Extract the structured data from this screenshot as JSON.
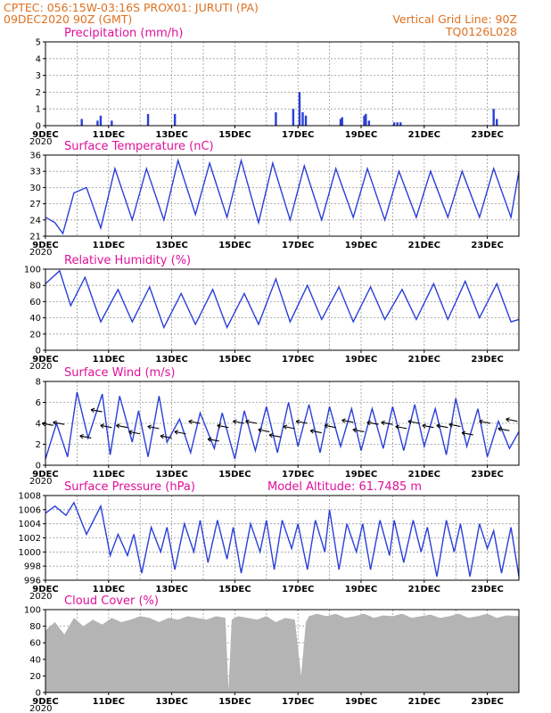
{
  "header": {
    "line1_left": "CPTEC:   056:15W-03:16S   PROX01: JURUTI (PA)",
    "line1_right": "Vertical Grid Line: 90Z",
    "line2_left": "09DEC2020 90Z (GMT)",
    "line2_right": "TQ0126L028"
  },
  "colors": {
    "header": "#e07020",
    "title": "#e0109a",
    "series": "#2a3fd8",
    "cloud": "#b4b4b4",
    "grid": "#9a9a9a"
  },
  "x_axis": {
    "tick_labels": [
      "9DEC",
      "11DEC",
      "13DEC",
      "15DEC",
      "17DEC",
      "19DEC",
      "21DEC",
      "23DEC"
    ],
    "corner_label": "2020",
    "start_day": 9,
    "end_day": 24
  },
  "chart_data": [
    {
      "id": "precip",
      "type": "bar",
      "title": "Precipitation (mm/h)",
      "extra_label": "",
      "ylim": [
        0,
        5
      ],
      "yticks": [
        0,
        1,
        2,
        3,
        4,
        5
      ],
      "grid": true,
      "x": [
        "10.15",
        "10.65",
        "10.75",
        "11.10",
        "12.25",
        "13.10",
        "16.30",
        "16.85",
        "17.05",
        "17.15",
        "17.25",
        "18.35",
        "18.40",
        "19.10",
        "19.15",
        "19.25",
        "20.05",
        "20.15",
        "20.25",
        "23.20",
        "23.30"
      ],
      "values": [
        0.4,
        0.3,
        0.6,
        0.3,
        0.7,
        0.7,
        0.8,
        1.0,
        2.0,
        0.8,
        0.6,
        0.4,
        0.5,
        0.6,
        0.7,
        0.3,
        0.2,
        0.2,
        0.2,
        1.0,
        0.4
      ]
    },
    {
      "id": "temp",
      "type": "line",
      "title": "Surface Temperature (nC)",
      "extra_label": "",
      "ylim": [
        21,
        36
      ],
      "yticks": [
        21,
        24,
        27,
        30,
        33,
        36
      ],
      "grid": true,
      "x": [
        "9.0",
        "9.3",
        "9.55",
        "9.9",
        "10.3",
        "10.75",
        "11.2",
        "11.75",
        "12.2",
        "12.75",
        "13.2",
        "13.75",
        "14.2",
        "14.75",
        "15.2",
        "15.75",
        "16.2",
        "16.75",
        "17.2",
        "17.75",
        "18.2",
        "18.75",
        "19.2",
        "19.75",
        "20.2",
        "20.75",
        "21.2",
        "21.75",
        "22.2",
        "22.75",
        "23.2",
        "23.75",
        "24.0"
      ],
      "values": [
        24.5,
        23.5,
        21.5,
        29.0,
        30.0,
        22.5,
        33.5,
        24.0,
        33.5,
        24.0,
        35.0,
        25.0,
        34.5,
        24.5,
        35.0,
        23.5,
        34.5,
        24.0,
        34.0,
        24.0,
        33.5,
        24.5,
        33.5,
        24.0,
        33.0,
        24.5,
        33.0,
        24.5,
        33.0,
        24.5,
        33.5,
        24.5,
        33.0
      ]
    },
    {
      "id": "rh",
      "type": "line",
      "title": "Relative Humidity (%)",
      "extra_label": "",
      "ylim": [
        0,
        100
      ],
      "yticks": [
        0,
        20,
        40,
        60,
        80,
        100
      ],
      "grid": true,
      "x": [
        "9.0",
        "9.45",
        "9.8",
        "10.25",
        "10.75",
        "11.3",
        "11.75",
        "12.3",
        "12.75",
        "13.3",
        "13.75",
        "14.3",
        "14.75",
        "15.3",
        "15.75",
        "16.3",
        "16.75",
        "17.3",
        "17.75",
        "18.3",
        "18.75",
        "19.3",
        "19.75",
        "20.3",
        "20.75",
        "21.3",
        "21.75",
        "22.3",
        "22.75",
        "23.3",
        "23.75",
        "24.0"
      ],
      "values": [
        82,
        98,
        55,
        90,
        35,
        75,
        35,
        78,
        28,
        70,
        32,
        75,
        28,
        70,
        32,
        88,
        35,
        80,
        38,
        78,
        35,
        78,
        38,
        75,
        38,
        82,
        38,
        85,
        40,
        82,
        35,
        38
      ]
    },
    {
      "id": "wind",
      "type": "line",
      "title": "Surface Wind (m/s)",
      "extra_label": "",
      "ylim": [
        0,
        8
      ],
      "yticks": [
        0,
        2,
        4,
        6,
        8
      ],
      "grid": true,
      "x": [
        "9.0",
        "9.35",
        "9.7",
        "10.0",
        "10.35",
        "10.8",
        "11.05",
        "11.35",
        "11.75",
        "11.95",
        "12.25",
        "12.6",
        "12.85",
        "13.25",
        "13.6",
        "13.9",
        "14.35",
        "14.6",
        "15.0",
        "15.3",
        "15.65",
        "16.0",
        "16.35",
        "16.7",
        "17.0",
        "17.35",
        "17.7",
        "18.0",
        "18.35",
        "18.7",
        "19.0",
        "19.35",
        "19.7",
        "20.0",
        "20.35",
        "20.7",
        "21.0",
        "21.35",
        "21.7",
        "22.0",
        "22.35",
        "22.7",
        "23.0",
        "23.35",
        "23.7",
        "24.0"
      ],
      "values": [
        0.6,
        4.0,
        0.8,
        7.0,
        2.6,
        6.8,
        1.0,
        6.6,
        2.2,
        5.2,
        0.8,
        6.6,
        2.2,
        4.4,
        1.2,
        5.0,
        1.6,
        5.0,
        0.6,
        5.2,
        1.4,
        5.6,
        1.2,
        6.0,
        1.8,
        5.8,
        1.2,
        5.6,
        1.8,
        5.4,
        1.4,
        5.4,
        1.6,
        5.6,
        1.4,
        5.8,
        1.8,
        5.4,
        1.0,
        6.4,
        1.8,
        5.4,
        0.8,
        4.2,
        1.6,
        3.2
      ],
      "barbs": [
        [
          9.25,
          3.8
        ],
        [
          9.6,
          3.9
        ],
        [
          10.45,
          2.6
        ],
        [
          10.8,
          5.1
        ],
        [
          11.1,
          3.6
        ],
        [
          11.6,
          3.6
        ],
        [
          12.0,
          3.0
        ],
        [
          12.6,
          3.5
        ],
        [
          13.0,
          2.6
        ],
        [
          13.45,
          3.0
        ],
        [
          13.9,
          4.0
        ],
        [
          14.5,
          2.3
        ],
        [
          14.8,
          3.6
        ],
        [
          15.3,
          4.0
        ],
        [
          15.7,
          4.0
        ],
        [
          16.1,
          3.2
        ],
        [
          16.45,
          2.7
        ],
        [
          16.9,
          3.5
        ],
        [
          17.3,
          4.0
        ],
        [
          17.75,
          3.1
        ],
        [
          18.2,
          3.6
        ],
        [
          18.75,
          4.1
        ],
        [
          19.1,
          3.2
        ],
        [
          19.55,
          3.9
        ],
        [
          20.0,
          3.9
        ],
        [
          20.45,
          3.5
        ],
        [
          20.85,
          4.0
        ],
        [
          21.3,
          3.6
        ],
        [
          21.75,
          3.6
        ],
        [
          22.15,
          3.7
        ],
        [
          22.55,
          2.9
        ],
        [
          23.1,
          4.0
        ],
        [
          23.7,
          3.3
        ],
        [
          23.95,
          4.2
        ]
      ]
    },
    {
      "id": "pres",
      "type": "line",
      "title": "Surface Pressure (hPa)",
      "extra_label": "Model Altitude: 61.7485 m",
      "ylim": [
        996,
        1008
      ],
      "yticks": [
        996,
        998,
        1000,
        1002,
        1004,
        1006,
        1008
      ],
      "grid": true,
      "x": [
        "9.0",
        "9.3",
        "9.65",
        "9.9",
        "10.3",
        "10.75",
        "11.05",
        "11.3",
        "11.6",
        "11.8",
        "12.05",
        "12.35",
        "12.65",
        "12.85",
        "13.1",
        "13.4",
        "13.7",
        "13.9",
        "14.15",
        "14.45",
        "14.75",
        "14.95",
        "15.2",
        "15.5",
        "15.8",
        "16.0",
        "16.25",
        "16.5",
        "16.8",
        "17.0",
        "17.3",
        "17.55",
        "17.85",
        "18.0",
        "18.3",
        "18.55",
        "18.85",
        "19.05",
        "19.3",
        "19.6",
        "19.9",
        "20.05",
        "20.35",
        "20.65",
        "20.9",
        "21.1",
        "21.4",
        "21.7",
        "21.95",
        "22.15",
        "22.45",
        "22.75",
        "23.0",
        "23.2",
        "23.45",
        "23.75",
        "24.0"
      ],
      "values": [
        1005.5,
        1006.5,
        1005.2,
        1007.0,
        1002.5,
        1006.5,
        999.5,
        1002.5,
        999.5,
        1002.5,
        997.0,
        1003.5,
        1000.0,
        1003.5,
        997.5,
        1004.0,
        1000.0,
        1004.5,
        998.5,
        1004.5,
        999.0,
        1003.5,
        997.0,
        1004.0,
        1000.0,
        1004.5,
        997.5,
        1004.5,
        1000.5,
        1004.0,
        997.5,
        1004.5,
        1000.0,
        1006.0,
        997.5,
        1004.0,
        1000.0,
        1004.0,
        997.5,
        1004.5,
        999.5,
        1004.5,
        998.5,
        1004.5,
        1000.0,
        1003.5,
        996.5,
        1004.5,
        1000.0,
        1004.0,
        996.5,
        1004.0,
        1000.5,
        1003.0,
        997.0,
        1003.5,
        996.5
      ]
    },
    {
      "id": "cloud",
      "type": "area",
      "title": "Cloud Cover (%)",
      "extra_label": "",
      "ylim": [
        0,
        100
      ],
      "yticks": [
        0,
        20,
        40,
        60,
        80,
        100
      ],
      "grid": true,
      "x": [
        "9.0",
        "9.3",
        "9.6",
        "9.9",
        "10.2",
        "10.5",
        "10.8",
        "11.1",
        "11.4",
        "11.7",
        "12.0",
        "12.3",
        "12.6",
        "12.9",
        "13.2",
        "13.5",
        "13.8",
        "14.1",
        "14.4",
        "14.7",
        "14.8",
        "14.9",
        "15.1",
        "15.4",
        "15.7",
        "16.0",
        "16.3",
        "16.6",
        "16.9",
        "17.1",
        "17.25",
        "17.35",
        "17.6",
        "17.9",
        "18.2",
        "18.5",
        "18.8",
        "19.1",
        "19.4",
        "19.7",
        "20.0",
        "20.3",
        "20.6",
        "20.9",
        "21.2",
        "21.5",
        "21.8",
        "22.1",
        "22.4",
        "22.7",
        "23.0",
        "23.3",
        "23.6",
        "24.0"
      ],
      "values": [
        75,
        85,
        70,
        90,
        80,
        88,
        82,
        90,
        85,
        88,
        92,
        90,
        85,
        90,
        88,
        92,
        90,
        88,
        92,
        90,
        3,
        88,
        92,
        90,
        88,
        92,
        85,
        90,
        88,
        20,
        85,
        92,
        95,
        92,
        95,
        90,
        92,
        95,
        90,
        93,
        92,
        95,
        90,
        92,
        94,
        90,
        92,
        95,
        90,
        92,
        95,
        90,
        93,
        92
      ]
    }
  ]
}
